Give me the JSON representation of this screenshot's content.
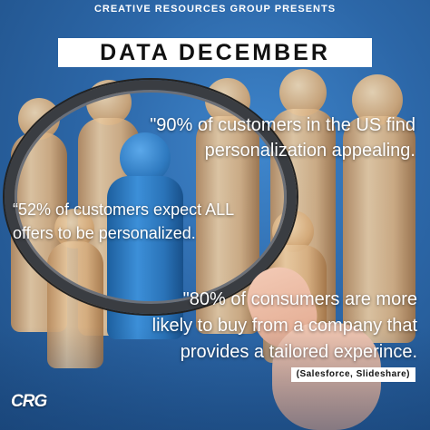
{
  "header": {
    "presents": "CREATIVE RESOURCES GROUP PRESENTS",
    "title": "DATA DECEMBER"
  },
  "quotes": {
    "q1": {
      "line1": "\"90% of customers in the US find",
      "line2": "personalization appealing."
    },
    "q2": {
      "line1": "“52% of customers expect ALL",
      "line2": "offers to be personalized."
    },
    "q3": {
      "line1": "\"80% of consumers are more",
      "line2": "likely to buy from a company that",
      "line3": "provides a tailored experince."
    }
  },
  "source": "(Salesforce, Slideshare)",
  "logo": "CRG"
}
